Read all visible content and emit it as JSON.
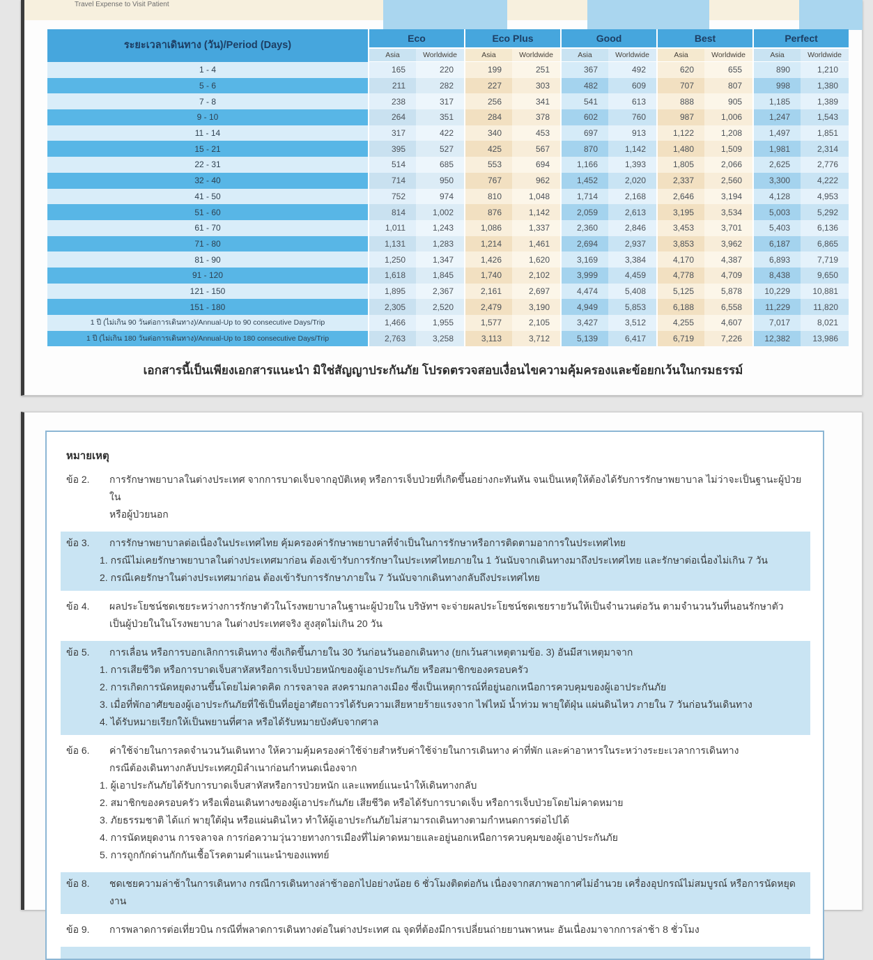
{
  "top_strip": {
    "label": "Travel Expense to Visit Patient"
  },
  "table": {
    "period_header": "ระยะเวลาเดินทาง (วัน)/Period (Days)",
    "groups": [
      {
        "label": "Eco",
        "tone": "blue"
      },
      {
        "label": "Eco Plus",
        "tone": "cream"
      },
      {
        "label": "Good",
        "tone": "blue"
      },
      {
        "label": "Best",
        "tone": "cream"
      },
      {
        "label": "Perfect",
        "tone": "blue"
      }
    ],
    "subcols": [
      "Asia",
      "Worldwide"
    ],
    "rows": [
      {
        "period": "1 - 4",
        "values": [
          "165",
          "220",
          "199",
          "251",
          "367",
          "492",
          "620",
          "655",
          "890",
          "1,210"
        ]
      },
      {
        "period": "5 - 6",
        "values": [
          "211",
          "282",
          "227",
          "303",
          "482",
          "609",
          "707",
          "807",
          "998",
          "1,380"
        ]
      },
      {
        "period": "7 - 8",
        "values": [
          "238",
          "317",
          "256",
          "341",
          "541",
          "613",
          "888",
          "905",
          "1,185",
          "1,389"
        ]
      },
      {
        "period": "9 - 10",
        "values": [
          "264",
          "351",
          "284",
          "378",
          "602",
          "760",
          "987",
          "1,006",
          "1,247",
          "1,543"
        ]
      },
      {
        "period": "11 - 14",
        "values": [
          "317",
          "422",
          "340",
          "453",
          "697",
          "913",
          "1,122",
          "1,208",
          "1,497",
          "1,851"
        ]
      },
      {
        "period": "15 - 21",
        "values": [
          "395",
          "527",
          "425",
          "567",
          "870",
          "1,142",
          "1,480",
          "1,509",
          "1,981",
          "2,314"
        ]
      },
      {
        "period": "22 - 31",
        "values": [
          "514",
          "685",
          "553",
          "694",
          "1,166",
          "1,393",
          "1,805",
          "2,066",
          "2,625",
          "2,776"
        ]
      },
      {
        "period": "32 - 40",
        "values": [
          "714",
          "950",
          "767",
          "962",
          "1,452",
          "2,020",
          "2,337",
          "2,560",
          "3,300",
          "4,222"
        ]
      },
      {
        "period": "41 - 50",
        "values": [
          "752",
          "974",
          "810",
          "1,048",
          "1,714",
          "2,168",
          "2,646",
          "3,194",
          "4,128",
          "4,953"
        ]
      },
      {
        "period": "51 - 60",
        "values": [
          "814",
          "1,002",
          "876",
          "1,142",
          "2,059",
          "2,613",
          "3,195",
          "3,534",
          "5,003",
          "5,292"
        ]
      },
      {
        "period": "61 - 70",
        "values": [
          "1,011",
          "1,243",
          "1,086",
          "1,337",
          "2,360",
          "2,846",
          "3,453",
          "3,701",
          "5,403",
          "6,136"
        ]
      },
      {
        "period": "71 - 80",
        "values": [
          "1,131",
          "1,283",
          "1,214",
          "1,461",
          "2,694",
          "2,937",
          "3,853",
          "3,962",
          "6,187",
          "6,865"
        ]
      },
      {
        "period": "81 - 90",
        "values": [
          "1,250",
          "1,347",
          "1,426",
          "1,620",
          "3,169",
          "3,384",
          "4,170",
          "4,387",
          "6,893",
          "7,719"
        ]
      },
      {
        "period": "91 - 120",
        "values": [
          "1,618",
          "1,845",
          "1,740",
          "2,102",
          "3,999",
          "4,459",
          "4,778",
          "4,709",
          "8,438",
          "9,650"
        ]
      },
      {
        "period": "121 - 150",
        "values": [
          "1,895",
          "2,367",
          "2,161",
          "2,697",
          "4,474",
          "5,408",
          "5,125",
          "5,878",
          "10,229",
          "10,881"
        ]
      },
      {
        "period": "151 - 180",
        "values": [
          "2,305",
          "2,520",
          "2,479",
          "3,190",
          "4,949",
          "5,853",
          "6,188",
          "6,558",
          "11,229",
          "11,820"
        ]
      },
      {
        "period": "1 ปี (ไม่เกิน 90 วันต่อการเดินทาง)/Annual-Up to 90 consecutive Days/Trip",
        "values": [
          "1,466",
          "1,955",
          "1,577",
          "2,105",
          "3,427",
          "3,512",
          "4,255",
          "4,607",
          "7,017",
          "8,021"
        ]
      },
      {
        "period": "1 ปี (ไม่เกิน 180 วันต่อการเดินทาง)/Annual-Up to 180 consecutive Days/Trip",
        "values": [
          "2,763",
          "3,258",
          "3,113",
          "3,712",
          "5,139",
          "6,417",
          "6,719",
          "7,226",
          "12,382",
          "13,986"
        ]
      }
    ]
  },
  "disclaimer": "เอกสารนี้เป็นเพียงเอกสารแนะนำ มิใช่สัญญาประกันภัย โปรดตรวจสอบเงื่อนไขความคุ้มครองและข้อยกเว้นในกรมธรรม์",
  "notes": {
    "title": "หมายเหตุ",
    "items": [
      {
        "no": "ข้อ 2.",
        "lines": [
          "การรักษาพยาบาลในต่างประเทศ จากการบาดเจ็บจากอุบัติเหตุ หรือการเจ็บป่วยที่เกิดขึ้นอย่างกะทันหัน จนเป็นเหตุให้ต้องได้รับการรักษาพยาบาล ไม่ว่าจะเป็นฐานะผู้ป่วยใน",
          "หรือผู้ป่วยนอก"
        ],
        "subs": [],
        "highlight": false
      },
      {
        "no": "ข้อ 3.",
        "lines": [
          "การรักษาพยาบาลต่อเนื่องในประเทศไทย คุ้มครองค่ารักษาพยาบาลที่จำเป็นในการรักษาหรือการติดตามอาการในประเทศไทย"
        ],
        "subs": [
          "1. กรณีไม่เคยรักษาพยาบาลในต่างประเทศมาก่อน ต้องเข้ารับการรักษาในประเทศไทยภายใน 1 วันนับจากเดินทางมาถึงประเทศไทย และรักษาต่อเนื่องไม่เกิน 7 วัน",
          "2. กรณีเคยรักษาในต่างประเทศมาก่อน ต้องเข้ารับการรักษาภายใน 7 วันนับจากเดินทางกลับถึงประเทศไทย"
        ],
        "highlight": true
      },
      {
        "no": "ข้อ 4.",
        "lines": [
          "ผลประโยชน์ชดเชยระหว่างการรักษาตัวในโรงพยาบาลในฐานะผู้ป่วยใน บริษัทฯ จะจ่ายผลประโยชน์ชดเชยรายวันให้เป็นจำนวนต่อวัน ตามจำนวนวันที่นอนรักษาตัว",
          "เป็นผู้ป่วยในในโรงพยาบาล ในต่างประเทศจริง สูงสุดไม่เกิน 20 วัน"
        ],
        "subs": [],
        "highlight": false
      },
      {
        "no": "ข้อ 5.",
        "lines": [
          "การเลื่อน หรือการบอกเลิกการเดินทาง ซึ่งเกิดขึ้นภายใน 30 วันก่อนวันออกเดินทาง (ยกเว้นสาเหตุตามข้อ. 3) อันมีสาเหตุมาจาก"
        ],
        "subs": [
          "1. การเสียชีวิต หรือการบาดเจ็บสาหัสหรือการเจ็บป่วยหนักของผู้เอาประกันภัย หรือสมาชิกของครอบครัว",
          "2. การเกิดการนัดหยุดงานขึ้นโดยไม่คาดคิด การจลาจล สงครามกลางเมือง ซึ่งเป็นเหตุการณ์ที่อยู่นอกเหนือการควบคุมของผู้เอาประกันภัย",
          "3. เมื่อที่พักอาศัยของผู้เอาประกันภัยที่ใช้เป็นที่อยู่อาศัยถาวรได้รับความเสียหายร้ายแรงจาก ไฟไหม้ น้ำท่วม พายุใต้ฝุ่น แผ่นดินไหว ภายใน 7 วันก่อนวันเดินทาง",
          "4. ได้รับหมายเรียกให้เป็นพยานที่ศาล หรือได้รับหมายบังคับจากศาล"
        ],
        "highlight": true
      },
      {
        "no": "ข้อ 6.",
        "lines": [
          "ค่าใช้จ่ายในการลดจำนวนวันเดินทาง ให้ความคุ้มครองค่าใช้จ่ายสำหรับค่าใช้จ่ายในการเดินทาง ค่าที่พัก และค่าอาหารในระหว่างระยะเวลาการเดินทาง",
          "กรณีต้องเดินทางกลับประเทศภูมิลำเนาก่อนกำหนดเนื่องจาก"
        ],
        "subs": [
          "1. ผู้เอาประกันภัยได้รับการบาดเจ็บสาหัสหรือการป่วยหนัก และแพทย์แนะนำให้เดินทางกลับ",
          "2. สมาชิกของครอบครัว หรือเพื่อนเดินทางของผู้เอาประกันภัย เสียชีวิต หรือได้รับการบาดเจ็บ หรือการเจ็บป่วยโดยไม่คาดหมาย",
          "3. ภัยธรรมชาติ ได้แก่ พายุใต้ฝุ่น หรือแผ่นดินไหว ทำให้ผู้เอาประกันภัยไม่สามารถเดินทางตามกำหนดการต่อไปได้",
          "4. การนัดหยุดงาน การจลาจล การก่อความวุ่นวายทางการเมืองที่ไม่คาดหมายและอยู่นอกเหนือการควบคุมของผู้เอาประกันภัย",
          "5. การถูกกักด่านกักกันเชื้อโรคตามคำแนะนำของแพทย์"
        ],
        "highlight": false
      },
      {
        "no": "ข้อ 8.",
        "lines": [
          "ชดเชยความล่าช้าในการเดินทาง กรณีการเดินทางล่าช้าออกไปอย่างน้อย 6 ชั่วโมงติดต่อกัน เนื่องจากสภาพอากาศไม่อำนวย เครื่องอุปกรณ์ไม่สมบูรณ์ หรือการนัดหยุดงาน"
        ],
        "subs": [],
        "highlight": true
      },
      {
        "no": "ข้อ 9.",
        "lines": [
          "การพลาดการต่อเที่ยวบิน กรณีที่พลาดการเดินทางต่อในต่างประเทศ ณ จุดที่ต้องมีการเปลี่ยนถ่ายยานพาหนะ อันเนื่องมาจากการล่าช้า 8 ชั่วโมง"
        ],
        "subs": [],
        "highlight": false
      }
    ]
  },
  "colors": {
    "header_blue": "#46a6dd",
    "row_dark_blue": "#58b6e6",
    "row_light_blue": "#d9edf9",
    "cream_band": "#f2e0c1",
    "note_highlight": "#c9e4f3"
  }
}
